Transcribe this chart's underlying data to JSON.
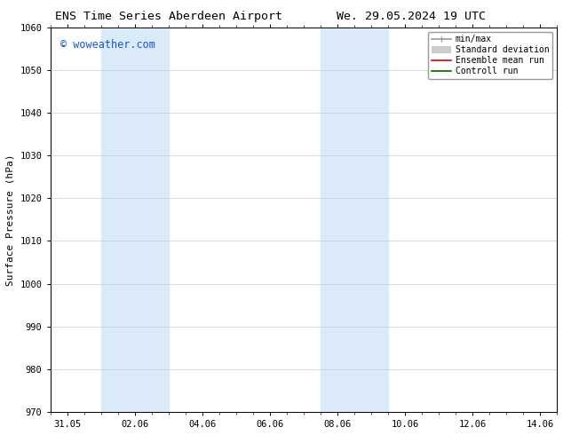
{
  "title_left": "ENS Time Series Aberdeen Airport",
  "title_right": "We. 29.05.2024 19 UTC",
  "ylabel": "Surface Pressure (hPa)",
  "ylim": [
    970,
    1060
  ],
  "yticks": [
    970,
    980,
    990,
    1000,
    1010,
    1020,
    1030,
    1040,
    1050,
    1060
  ],
  "xtick_labels": [
    "31.05",
    "02.06",
    "04.06",
    "06.06",
    "08.06",
    "10.06",
    "12.06",
    "14.06"
  ],
  "xtick_positions": [
    0,
    2,
    4,
    6,
    8,
    10,
    12,
    14
  ],
  "xlim": [
    -0.5,
    14.5
  ],
  "watermark": "© woweather.com",
  "watermark_color": "#1155cc",
  "background_color": "#ffffff",
  "shaded_regions": [
    {
      "xmin": 1.0,
      "xmax": 3.0,
      "color": "#daeaf8"
    },
    {
      "xmin": 7.5,
      "xmax": 9.5,
      "color": "#daeaf8"
    }
  ],
  "legend_items": [
    {
      "label": "min/max",
      "color": "#999999",
      "lw": 1.2
    },
    {
      "label": "Standard deviation",
      "color": "#cccccc",
      "lw": 5
    },
    {
      "label": "Ensemble mean run",
      "color": "#dd0000",
      "lw": 1.2
    },
    {
      "label": "Controll run",
      "color": "#006600",
      "lw": 1.2
    }
  ],
  "font_family": "DejaVu Sans Mono",
  "title_fontsize": 9.5,
  "axis_fontsize": 8,
  "tick_fontsize": 7.5,
  "legend_fontsize": 7,
  "watermark_fontsize": 8.5
}
